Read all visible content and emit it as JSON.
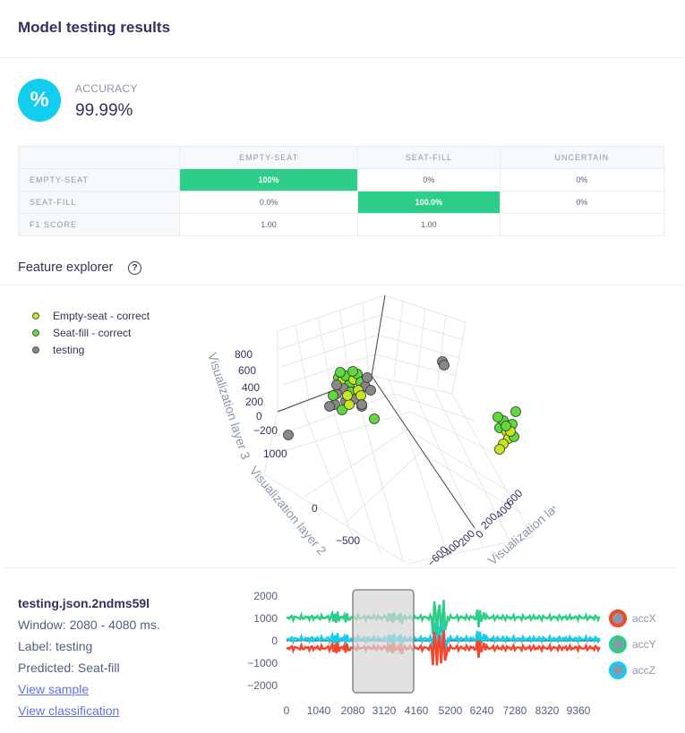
{
  "header": {
    "title": "Model testing results"
  },
  "accuracy": {
    "label": "ACCURACY",
    "value": "99.99%",
    "icon": "percent-icon",
    "icon_glyph": "%"
  },
  "confusion_matrix": {
    "columns": [
      "EMPTY-SEAT",
      "SEAT-FILL",
      "UNCERTAIN"
    ],
    "rows": [
      {
        "label": "EMPTY-SEAT",
        "cells": [
          "100%",
          "0%",
          "0%"
        ]
      },
      {
        "label": "SEAT-FILL",
        "cells": [
          "0.0%",
          "100.0%",
          "0%"
        ]
      },
      {
        "label": "F1 SCORE",
        "cells": [
          "1.00",
          "1.00",
          ""
        ]
      }
    ],
    "highlight_color": "#2dce89"
  },
  "feature_explorer": {
    "title": "Feature explorer",
    "help_glyph": "?",
    "legend": [
      {
        "label": "Empty-seat - correct",
        "color": "#c8e61e"
      },
      {
        "label": "Seat-fill - correct",
        "color": "#5ddb3a"
      },
      {
        "label": "testing",
        "color": "#888888"
      }
    ],
    "axes": {
      "z_label": "Visualization layer 3",
      "y_label": "Visualization layer 2",
      "x_label": "Visualization layer 1",
      "z_ticks": [
        "800",
        "600",
        "400",
        "200",
        "0",
        "−200"
      ],
      "y_ticks": [
        "1000",
        "0",
        "−500"
      ],
      "x_ticks": [
        "600",
        "400",
        "200",
        "0",
        "−200",
        "−400",
        "−600"
      ]
    }
  },
  "sample": {
    "title": "testing.json.2ndms59l",
    "window": "Window: 2080 - 4080 ms.",
    "label": "Label: testing",
    "predicted": "Predicted: Seat-fill",
    "view_sample": "View sample",
    "view_classification": "View classification"
  },
  "timeseries": {
    "y_ticks": [
      "2000",
      "1000",
      "0",
      "−1000",
      "−2000"
    ],
    "x_ticks": [
      "0",
      "1040",
      "2080",
      "3120",
      "4160",
      "5200",
      "6240",
      "7280",
      "8320",
      "9360"
    ],
    "series": [
      {
        "name": "accX",
        "color": "#f5462d"
      },
      {
        "name": "accY",
        "color": "#2dce89"
      },
      {
        "name": "accZ",
        "color": "#11cdef"
      }
    ]
  }
}
